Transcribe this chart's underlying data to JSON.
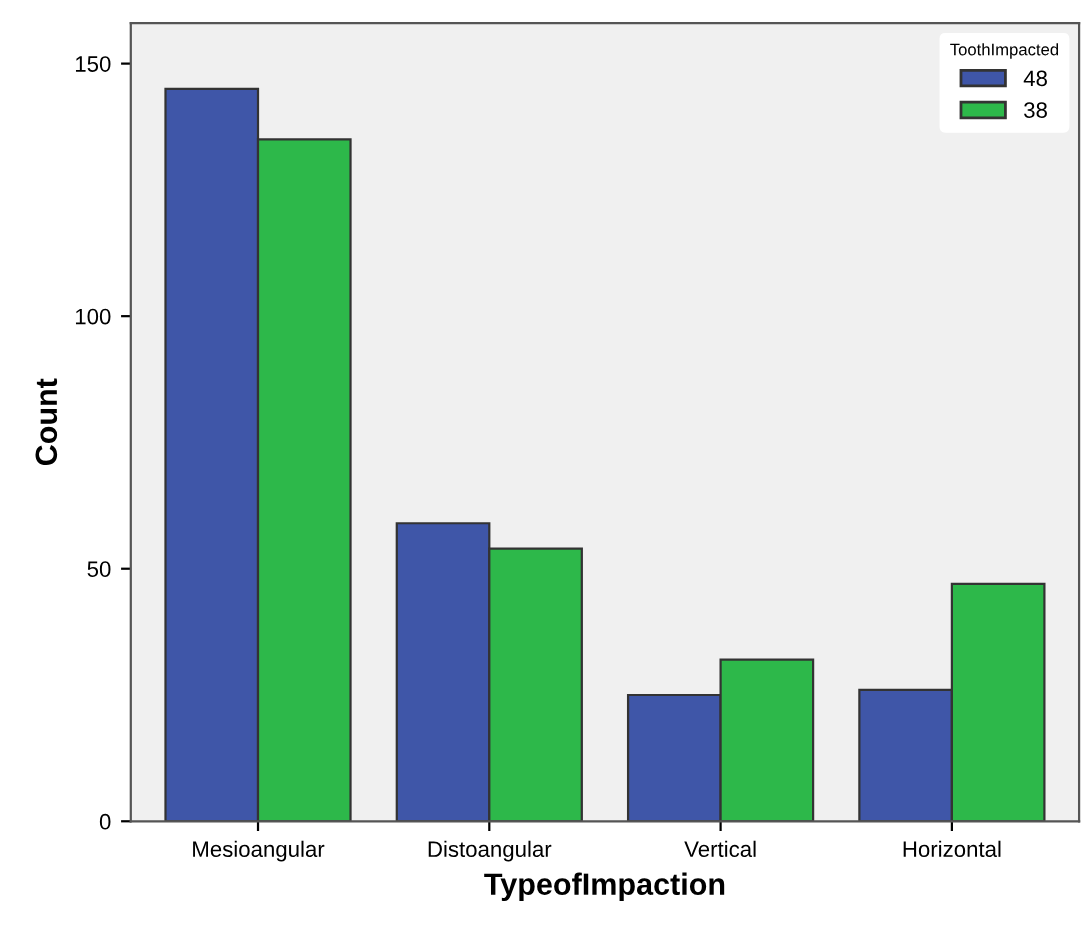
{
  "chart_data": {
    "type": "bar",
    "xlabel": "TypeofImpaction",
    "ylabel": "Count",
    "legend_title": "ToothImpacted",
    "categories": [
      "Mesioangular",
      "Distoangular",
      "Vertical",
      "Horizontal"
    ],
    "series": [
      {
        "name": "48",
        "color": "#3f56a8",
        "values": [
          145,
          59,
          25,
          26
        ]
      },
      {
        "name": "38",
        "color": "#2db84a",
        "values": [
          135,
          54,
          32,
          47
        ]
      }
    ],
    "ylim": [
      0,
      158
    ],
    "yticks": [
      0,
      50,
      100,
      150
    ],
    "grid": false,
    "legend": "top right"
  }
}
